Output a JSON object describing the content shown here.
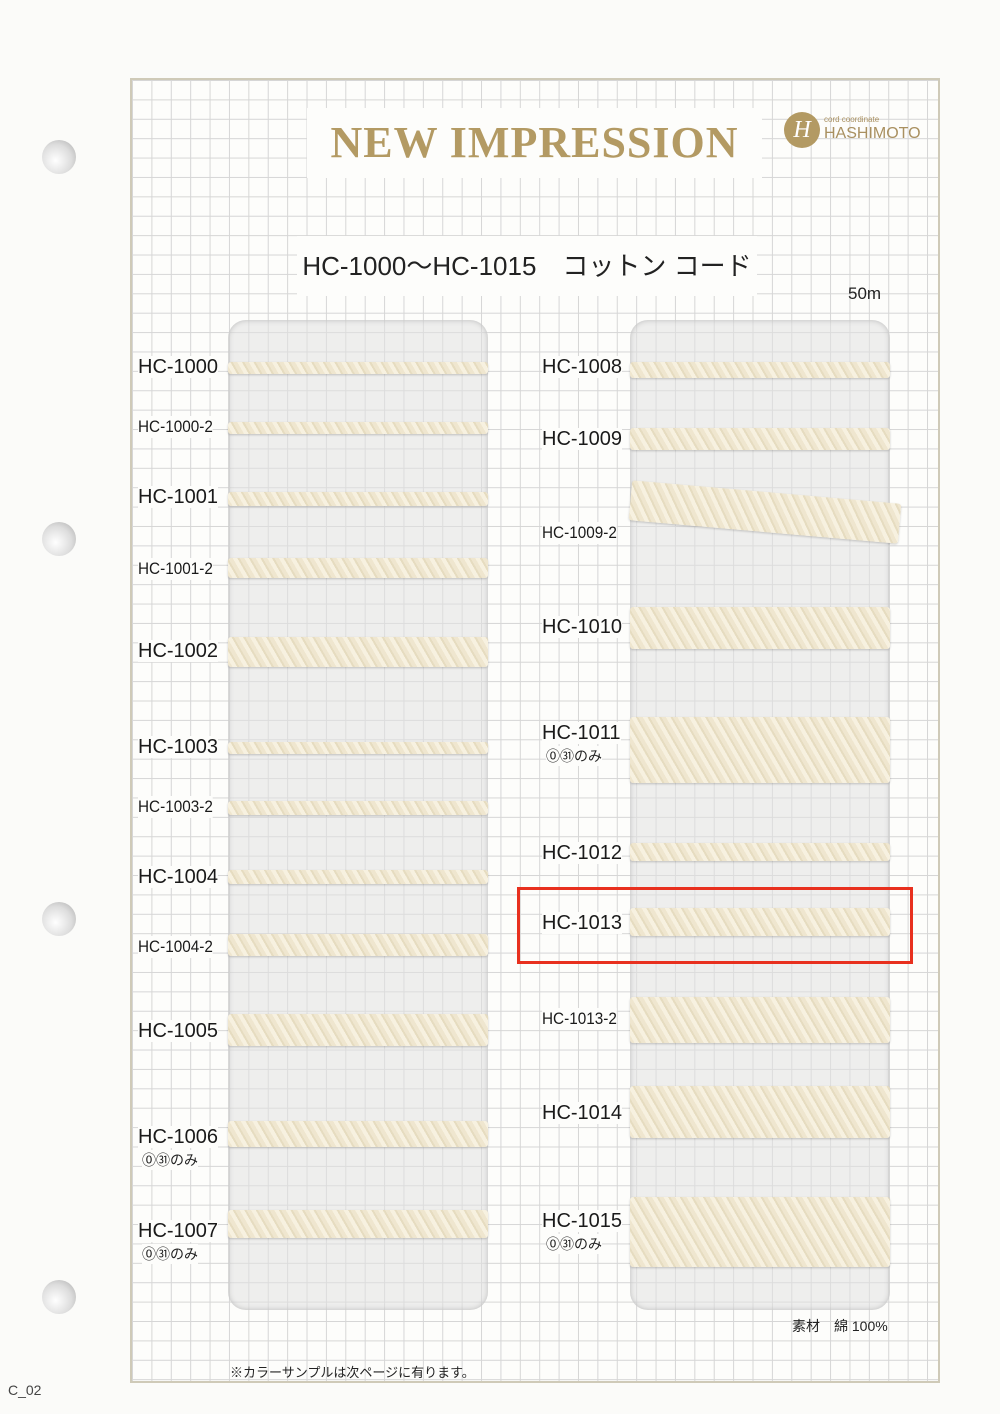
{
  "header": {
    "title": "NEW IMPRESSION",
    "logo_tagline": "cord coordinate",
    "logo_name": "HASHIMOTO",
    "logo_mark": "H"
  },
  "subtitle": "HC-1000〜HC-1015　コットン コード",
  "length": "50m",
  "left_items": [
    {
      "code": "HC-1000"
    },
    {
      "code": "HC-1000-2"
    },
    {
      "code": "HC-1001"
    },
    {
      "code": "HC-1001-2"
    },
    {
      "code": "HC-1002"
    },
    {
      "code": "HC-1003"
    },
    {
      "code": "HC-1003-2"
    },
    {
      "code": "HC-1004"
    },
    {
      "code": "HC-1004-2"
    },
    {
      "code": "HC-1005"
    },
    {
      "code": "HC-1006",
      "note": "⓪㉛のみ"
    },
    {
      "code": "HC-1007",
      "note": "⓪㉛のみ"
    }
  ],
  "right_items": [
    {
      "code": "HC-1008"
    },
    {
      "code": "HC-1009"
    },
    {
      "code": "HC-1009-2"
    },
    {
      "code": "HC-1010"
    },
    {
      "code": "HC-1011",
      "note": "⓪㉛のみ"
    },
    {
      "code": "HC-1012"
    },
    {
      "code": "HC-1013",
      "highlighted": true
    },
    {
      "code": "HC-1013-2"
    },
    {
      "code": "HC-1014"
    },
    {
      "code": "HC-1015",
      "note": "⓪㉛のみ"
    }
  ],
  "material": "素材　綿 100%",
  "footnote": "※カラーサンプルは次ページに有ります。",
  "page_id": "C_02",
  "colors": {
    "title_gold": "#b39a63",
    "highlight_red": "#e8301e",
    "cord_cream": "#efe6cf"
  }
}
